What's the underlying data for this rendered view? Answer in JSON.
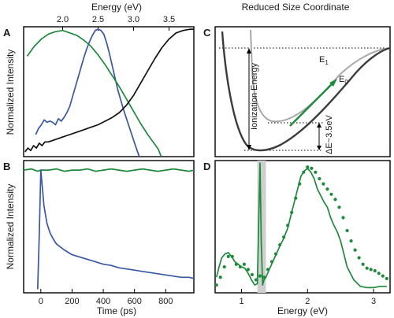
{
  "colors": {
    "blue": "#3a56a6",
    "green": "#1e8a3c",
    "black": "#111111",
    "gray": "#a8a8a8",
    "dark": "#3c3c3c",
    "band": "#cfcfcf"
  },
  "labels": {
    "top_axis": "Energy (eV)",
    "top_axis_right": "Reduced Size Coordinate",
    "ylabel_a": "Normalized Intensity",
    "ylabel_b": "Normalized Intensity",
    "xlabel_b": "Time (ps)",
    "xlabel_d": "Energy (eV)",
    "ionization": "Ionization Energy",
    "e1": "E",
    "e1_sub": "1",
    "e0": "E",
    "e0_sub": "0",
    "delta_e": "ΔE~3.5eV"
  },
  "chart_data": [
    {
      "panel": "A",
      "type": "line",
      "xlabel": "Energy (eV)",
      "ylabel": "Normalized Intensity",
      "xlim": [
        1.45,
        3.85
      ],
      "ylim": [
        -0.04,
        1.02
      ],
      "xticks": [
        2.0,
        2.5,
        3.0,
        3.5
      ],
      "xtick_labels": [
        "2.0",
        "2.5",
        "3.0",
        "3.5"
      ],
      "series": [
        {
          "color": "blue",
          "x": [
            1.62,
            1.66,
            1.7,
            1.74,
            1.78,
            1.82,
            1.86,
            1.9,
            1.94,
            1.98,
            2.02,
            2.06,
            2.1,
            2.14,
            2.18,
            2.22,
            2.26,
            2.3,
            2.34,
            2.38,
            2.42,
            2.46,
            2.5,
            2.54,
            2.58,
            2.62,
            2.66,
            2.7,
            2.74,
            2.78,
            2.82,
            2.86,
            2.9,
            2.94,
            2.98,
            3.02,
            3.05,
            3.08
          ],
          "y": [
            0.14,
            0.19,
            0.22,
            0.26,
            0.24,
            0.25,
            0.24,
            0.22,
            0.27,
            0.25,
            0.28,
            0.32,
            0.37,
            0.45,
            0.53,
            0.61,
            0.69,
            0.77,
            0.84,
            0.9,
            0.95,
            0.99,
            1.0,
            0.99,
            0.96,
            0.89,
            0.8,
            0.7,
            0.6,
            0.5,
            0.42,
            0.34,
            0.27,
            0.2,
            0.13,
            0.06,
            0.01,
            -0.04
          ]
        },
        {
          "color": "green",
          "x": [
            1.5,
            1.6,
            1.7,
            1.8,
            1.9,
            2.0,
            2.1,
            2.2,
            2.3,
            2.4,
            2.5,
            2.6,
            2.7,
            2.8,
            2.9,
            3.0,
            3.1,
            3.2,
            3.3,
            3.35,
            3.39
          ],
          "y": [
            0.78,
            0.86,
            0.92,
            0.96,
            0.98,
            0.99,
            0.97,
            0.95,
            0.91,
            0.86,
            0.79,
            0.71,
            0.62,
            0.53,
            0.43,
            0.33,
            0.23,
            0.14,
            0.06,
            0.02,
            -0.04
          ]
        },
        {
          "color": "black",
          "x": [
            1.47,
            1.51,
            1.55,
            1.59,
            1.63,
            1.67,
            1.71,
            1.75,
            1.8,
            1.9,
            2.0,
            2.1,
            2.2,
            2.3,
            2.4,
            2.5,
            2.6,
            2.7,
            2.8,
            2.9,
            3.0,
            3.1,
            3.2,
            3.3,
            3.4,
            3.5,
            3.6,
            3.7,
            3.8,
            3.85
          ],
          "y": [
            0.0,
            0.03,
            0.01,
            0.05,
            0.03,
            0.07,
            0.05,
            0.08,
            0.08,
            0.1,
            0.12,
            0.14,
            0.16,
            0.18,
            0.2,
            0.22,
            0.25,
            0.28,
            0.32,
            0.38,
            0.46,
            0.56,
            0.66,
            0.76,
            0.85,
            0.92,
            0.97,
            0.99,
            1.0,
            1.0
          ]
        }
      ]
    },
    {
      "panel": "B",
      "type": "line",
      "xlabel": "Time (ps)",
      "ylabel": "Normalized Intensity",
      "xlim": [
        -110,
        980
      ],
      "ylim": [
        -0.03,
        1.08
      ],
      "xticks": [
        0,
        200,
        400,
        600,
        800
      ],
      "xtick_labels": [
        "0",
        "200",
        "400",
        "600",
        "800"
      ],
      "series": [
        {
          "color": "green",
          "x": [
            -110,
            -60,
            -20,
            0,
            50,
            100,
            150,
            200,
            250,
            300,
            350,
            400,
            450,
            500,
            550,
            600,
            650,
            700,
            750,
            800,
            850,
            900,
            950,
            980
          ],
          "y": [
            1.0,
            1.01,
            0.99,
            1.0,
            1.0,
            1.01,
            0.99,
            1.0,
            1.0,
            1.01,
            0.99,
            1.0,
            1.01,
            1.0,
            0.99,
            1.0,
            1.01,
            1.0,
            0.99,
            1.0,
            1.01,
            1.0,
            0.99,
            1.0
          ]
        },
        {
          "color": "blue",
          "x": [
            -20,
            -10,
            0,
            10,
            20,
            40,
            60,
            80,
            100,
            150,
            200,
            250,
            300,
            350,
            400,
            450,
            500,
            550,
            600,
            650,
            700,
            750,
            800,
            850,
            900,
            950,
            980
          ],
          "y": [
            0.0,
            0.45,
            1.0,
            0.85,
            0.7,
            0.55,
            0.47,
            0.42,
            0.38,
            0.33,
            0.29,
            0.27,
            0.25,
            0.23,
            0.21,
            0.2,
            0.18,
            0.17,
            0.16,
            0.15,
            0.14,
            0.13,
            0.12,
            0.11,
            0.1,
            0.1,
            0.09
          ]
        }
      ]
    },
    {
      "panel": "C",
      "type": "line",
      "xlabel": "Reduced Size Coordinate",
      "series": [
        {
          "color": "gray",
          "name": "E1"
        },
        {
          "color": "dark",
          "name": "E0"
        }
      ]
    },
    {
      "panel": "D",
      "type": "line",
      "xlabel": "Energy (eV)",
      "xlim": [
        0.6,
        3.25
      ],
      "ylim": [
        0,
        1.02
      ],
      "xticks": [
        1,
        2,
        3
      ],
      "xtick_labels": [
        "1",
        "2",
        "3"
      ],
      "band": [
        1.24,
        1.37
      ],
      "series": [
        {
          "color": "green",
          "style": "line",
          "x": [
            0.62,
            0.66,
            0.7,
            0.75,
            0.8,
            0.85,
            0.9,
            0.95,
            1.0,
            1.05,
            1.1,
            1.15,
            1.2,
            1.24,
            1.26,
            1.28,
            1.3,
            1.32,
            1.34,
            1.37,
            1.42,
            1.5,
            1.58,
            1.64,
            1.7,
            1.75,
            1.8,
            1.85,
            1.9,
            1.95,
            2.0,
            2.05,
            2.1,
            2.15,
            2.2,
            2.25,
            2.3,
            2.35,
            2.4,
            2.45,
            2.5,
            2.55,
            2.6,
            2.7,
            2.8,
            2.9,
            3.0,
            3.1,
            3.2
          ],
          "y": [
            0.12,
            0.2,
            0.27,
            0.3,
            0.31,
            0.28,
            0.24,
            0.22,
            0.2,
            0.19,
            0.15,
            0.1,
            0.06,
            0.07,
            0.55,
            1.0,
            0.38,
            0.06,
            0.1,
            0.12,
            0.18,
            0.27,
            0.36,
            0.42,
            0.5,
            0.6,
            0.7,
            0.8,
            0.9,
            0.94,
            0.96,
            0.93,
            0.88,
            0.8,
            0.75,
            0.7,
            0.66,
            0.58,
            0.52,
            0.47,
            0.4,
            0.3,
            0.2,
            0.1,
            0.05,
            0.04,
            0.04,
            0.05,
            0.05
          ]
        },
        {
          "color": "green",
          "style": "dots",
          "x": [
            0.62,
            0.68,
            0.74,
            0.8,
            0.86,
            0.92,
            0.98,
            1.04,
            1.1,
            1.16,
            1.22,
            1.28,
            1.34,
            1.4,
            1.46,
            1.52,
            1.58,
            1.64,
            1.7,
            1.76,
            1.82,
            1.88,
            1.94,
            2.0,
            2.06,
            2.12,
            2.18,
            2.24,
            2.3,
            2.36,
            2.42,
            2.48,
            2.54,
            2.6,
            2.66,
            2.72,
            2.78,
            2.84,
            2.9,
            2.96,
            3.02,
            3.08,
            3.14,
            3.2
          ],
          "y": [
            0.06,
            0.12,
            0.2,
            0.28,
            0.28,
            0.22,
            0.2,
            0.22,
            0.18,
            0.14,
            0.1,
            0.13,
            0.12,
            0.18,
            0.24,
            0.3,
            0.37,
            0.43,
            0.52,
            0.62,
            0.73,
            0.84,
            0.93,
            0.97,
            0.96,
            0.93,
            0.88,
            0.84,
            0.8,
            0.76,
            0.72,
            0.66,
            0.58,
            0.48,
            0.4,
            0.33,
            0.27,
            0.22,
            0.19,
            0.18,
            0.17,
            0.15,
            0.13,
            0.11
          ]
        }
      ]
    }
  ]
}
